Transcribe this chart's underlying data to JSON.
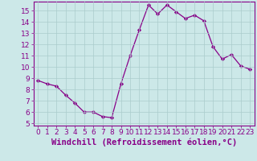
{
  "x": [
    0,
    1,
    2,
    3,
    4,
    5,
    6,
    7,
    8,
    9,
    10,
    11,
    12,
    13,
    14,
    15,
    16,
    17,
    18,
    19,
    20,
    21,
    22,
    23
  ],
  "y": [
    8.8,
    8.5,
    8.3,
    7.5,
    6.8,
    6.0,
    6.0,
    5.6,
    5.5,
    8.5,
    11.0,
    13.3,
    15.5,
    14.7,
    15.5,
    14.9,
    14.3,
    14.6,
    14.1,
    11.8,
    10.7,
    11.1,
    10.1,
    9.8
  ],
  "line_color": "#880088",
  "marker": "D",
  "marker_size": 2.2,
  "bg_color": "#cce8e8",
  "grid_color": "#aacccc",
  "xlabel": "Windchill (Refroidissement éolien,°C)",
  "xlim": [
    -0.5,
    23.5
  ],
  "ylim": [
    4.8,
    15.8
  ],
  "yticks": [
    5,
    6,
    7,
    8,
    9,
    10,
    11,
    12,
    13,
    14,
    15
  ],
  "xticks": [
    0,
    1,
    2,
    3,
    4,
    5,
    6,
    7,
    8,
    9,
    10,
    11,
    12,
    13,
    14,
    15,
    16,
    17,
    18,
    19,
    20,
    21,
    22,
    23
  ],
  "tick_label_fontsize": 6.5,
  "xlabel_fontsize": 7.5,
  "axis_label_color": "#880088",
  "tick_color": "#880088",
  "spine_color": "#880088"
}
